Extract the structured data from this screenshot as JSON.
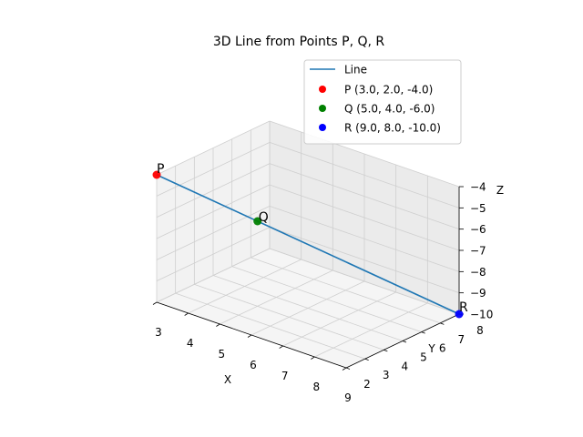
{
  "chart_data": {
    "type": "line3d",
    "title": "3D Line from Points P, Q, R",
    "xlabel": "X",
    "ylabel": "Y",
    "zlabel": "Z",
    "xlim": [
      3,
      9
    ],
    "ylim": [
      2,
      8
    ],
    "zlim": [
      -10,
      -4
    ],
    "xticks": [
      "3",
      "4",
      "5",
      "6",
      "7",
      "8",
      "9"
    ],
    "yticks": [
      "2",
      "3",
      "4",
      "5",
      "6",
      "7",
      "8"
    ],
    "zticks": [
      "−10",
      "−9",
      "−8",
      "−7",
      "−6",
      "−5",
      "−4"
    ],
    "grid": true,
    "legend_position": "top-right",
    "line": {
      "name": "Line",
      "color": "#1f77b4",
      "x": [
        3.0,
        9.0
      ],
      "y": [
        2.0,
        8.0
      ],
      "z": [
        -4.0,
        -10.0
      ]
    },
    "points": [
      {
        "label": "P",
        "legend": "P (3.0, 2.0, -4.0)",
        "color": "#ff0000",
        "x": 3.0,
        "y": 2.0,
        "z": -4.0
      },
      {
        "label": "Q",
        "legend": "Q (5.0, 4.0, -6.0)",
        "color": "#008000",
        "x": 5.0,
        "y": 4.0,
        "z": -6.0
      },
      {
        "label": "R",
        "legend": "R (9.0, 8.0, -10.0)",
        "color": "#0000ff",
        "x": 9.0,
        "y": 8.0,
        "z": -10.0
      }
    ]
  }
}
